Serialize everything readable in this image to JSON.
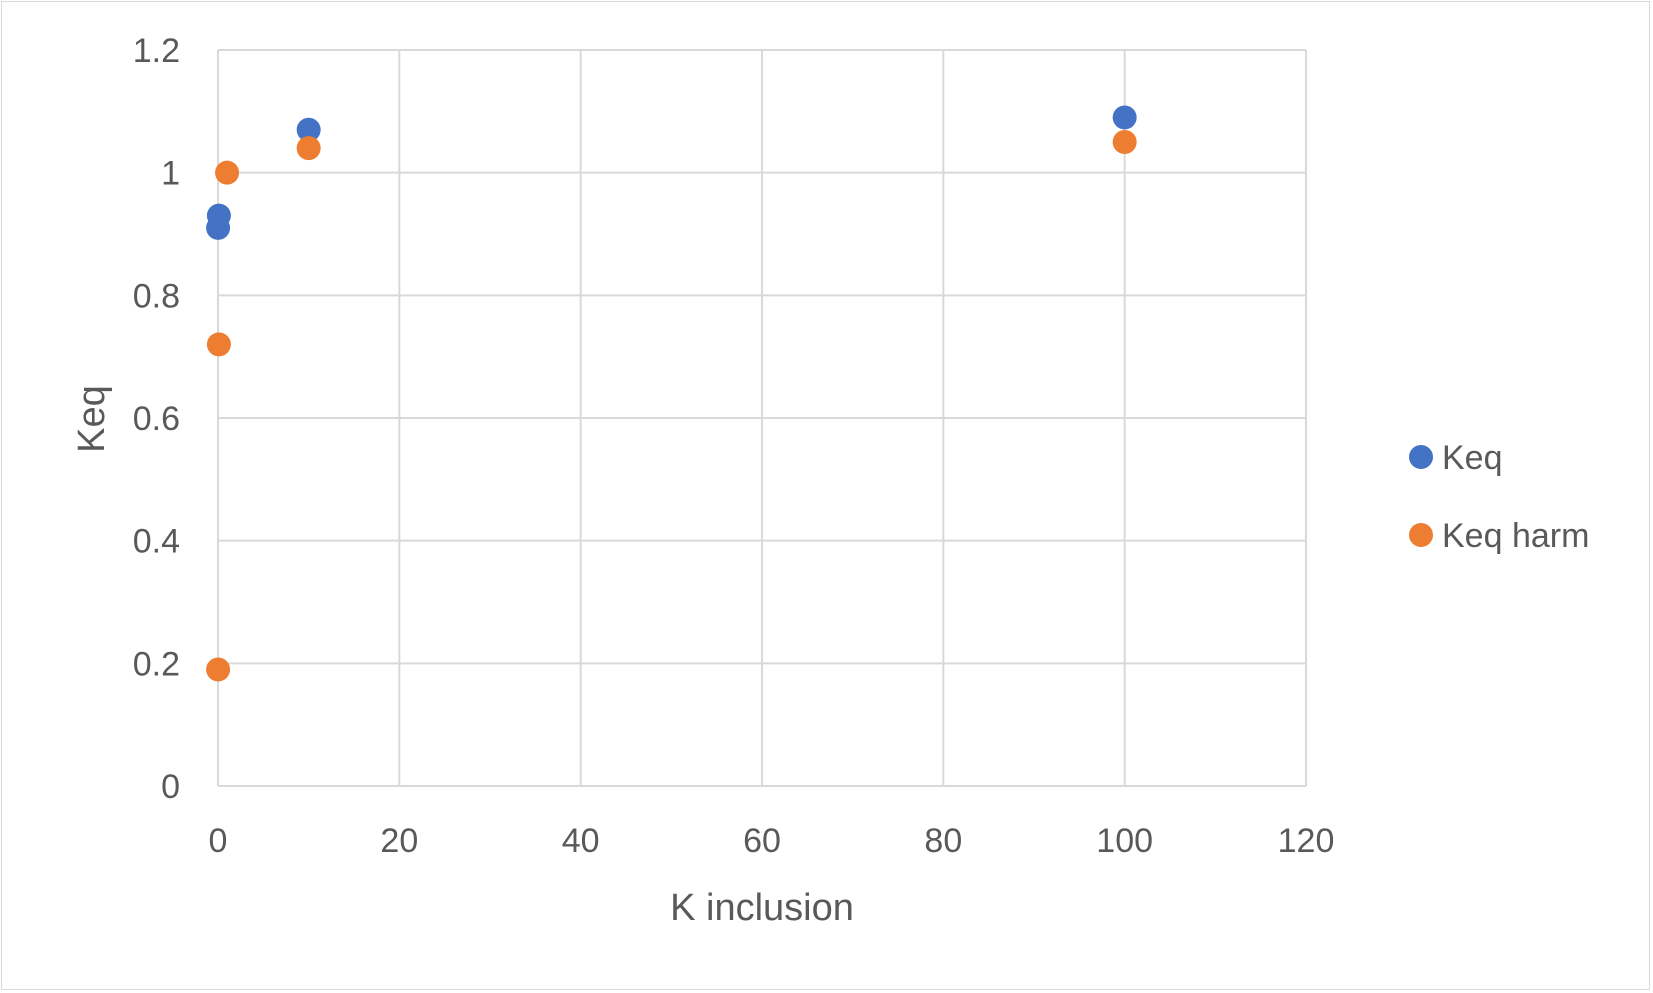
{
  "chart_data": {
    "type": "scatter",
    "title": "",
    "xlabel": "K inclusion",
    "ylabel": "Keq",
    "xlim": [
      0,
      120
    ],
    "ylim": [
      0,
      1.2
    ],
    "x_ticks": [
      "0",
      "20",
      "40",
      "60",
      "80",
      "100",
      "120"
    ],
    "y_ticks": [
      "0",
      "0.2",
      "0.4",
      "0.6",
      "0.8",
      "1",
      "1.2"
    ],
    "grid": true,
    "legend_position": "right",
    "series": [
      {
        "name": "Keq",
        "color": "#4472c4",
        "points": [
          {
            "x": 0.01,
            "y": 0.91
          },
          {
            "x": 0.1,
            "y": 0.93
          },
          {
            "x": 10,
            "y": 1.07
          },
          {
            "x": 100,
            "y": 1.09
          }
        ]
      },
      {
        "name": "Keq harm",
        "color": "#ed7d31",
        "points": [
          {
            "x": 0.01,
            "y": 0.19
          },
          {
            "x": 0.1,
            "y": 0.72
          },
          {
            "x": 1,
            "y": 1.0
          },
          {
            "x": 10,
            "y": 1.04
          },
          {
            "x": 100,
            "y": 1.05
          }
        ]
      }
    ]
  }
}
